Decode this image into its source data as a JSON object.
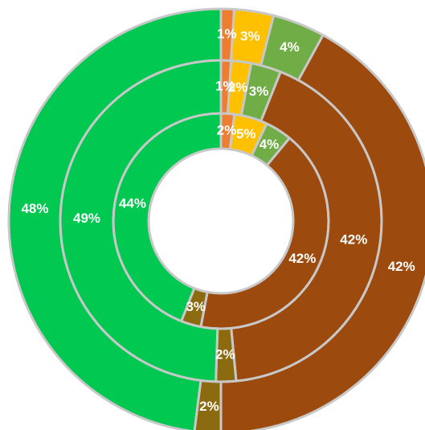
{
  "chart_data": {
    "type": "doughnut",
    "title": "",
    "rings": [
      {
        "values": [
          2,
          5,
          4,
          42,
          3,
          44
        ],
        "labels": [
          "2%",
          "5%",
          "4%",
          "42%",
          "3%",
          "44%"
        ]
      },
      {
        "values": [
          1,
          2,
          3,
          42,
          2,
          49
        ],
        "labels": [
          "1%",
          "2%",
          "3%",
          "42%",
          "2%",
          "49%"
        ]
      },
      {
        "values": [
          1,
          3,
          4,
          42,
          2,
          48
        ],
        "labels": [
          "1%",
          "3%",
          "4%",
          "42%",
          "2%",
          "48%"
        ]
      }
    ],
    "colors": [
      "#ed7d31",
      "#ffc000",
      "#70ad47",
      "#9c4a0e",
      "#8b6a10",
      "#00c850"
    ],
    "ring_border_color": "#c8c8c8",
    "legend": "none"
  }
}
